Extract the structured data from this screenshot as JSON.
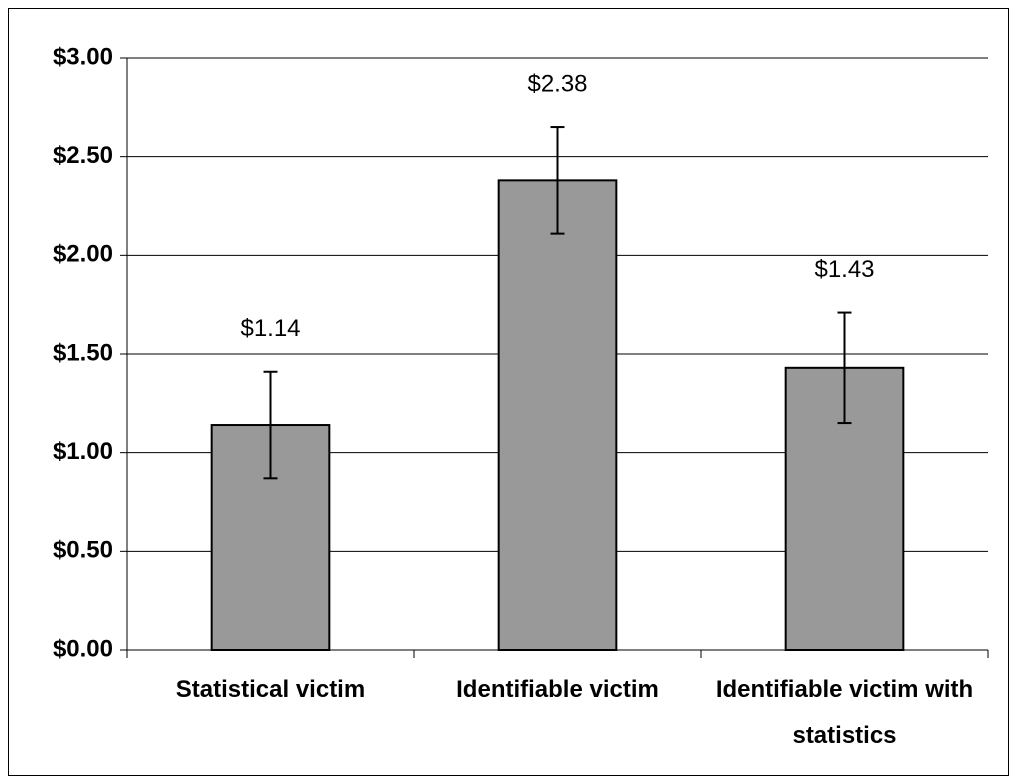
{
  "chart_data": {
    "type": "bar",
    "categories": [
      "Statistical victim",
      "Identifiable victim",
      "Identifiable victim with statistics"
    ],
    "values": [
      1.14,
      2.38,
      1.43
    ],
    "value_labels": [
      "$1.14",
      "$2.38",
      "$1.43"
    ],
    "errors": [
      0.27,
      0.27,
      0.28
    ],
    "color": "#999999",
    "ylim": [
      0,
      3
    ],
    "yticks": [
      {
        "value": 0,
        "label": "$0.00"
      },
      {
        "value": 0.5,
        "label": "$0.50"
      },
      {
        "value": 1,
        "label": "$1.00"
      },
      {
        "value": 1.5,
        "label": "$1.50"
      },
      {
        "value": 2,
        "label": "$2.00"
      },
      {
        "value": 2.5,
        "label": "$2.50"
      },
      {
        "value": 3,
        "label": "$3.00"
      }
    ],
    "grid": true
  }
}
